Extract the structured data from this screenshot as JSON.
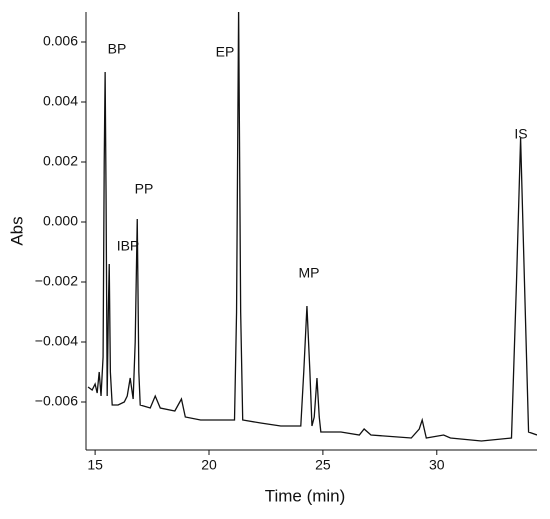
{
  "chart_data": {
    "type": "line",
    "x_label": "Time (min)",
    "y_label": "Abs",
    "annotations": [
      "BP",
      "IBP",
      "PP",
      "EP",
      "MP",
      "IS"
    ],
    "color": "#111111",
    "x": [
      14.69,
      14.87,
      15.0,
      15.09,
      15.18,
      15.26,
      15.35,
      15.4,
      15.44,
      15.48,
      15.53,
      15.58,
      15.62,
      15.67,
      15.75,
      16.01,
      16.28,
      16.41,
      16.54,
      16.67,
      16.76,
      16.85,
      16.92,
      16.98,
      17.42,
      17.64,
      17.86,
      18.5,
      18.79,
      18.96,
      19.63,
      20.51,
      21.12,
      21.21,
      21.3,
      21.39,
      21.48,
      22.27,
      23.15,
      24.03,
      24.16,
      24.3,
      24.43,
      24.52,
      24.62,
      24.74,
      24.84,
      24.91,
      25.79,
      26.6,
      26.81,
      27.11,
      28.88,
      29.23,
      29.36,
      29.54,
      30.3,
      30.6,
      31.96,
      33.28,
      33.5,
      33.68,
      33.85,
      34.03,
      34.4
    ],
    "values": [
      -0.0055,
      -0.0056,
      -0.0054,
      -0.0057,
      -0.005,
      -0.0058,
      -0.0045,
      0.002,
      0.005,
      0.001,
      -0.0058,
      -0.003,
      -0.0014,
      -0.005,
      -0.0061,
      -0.0061,
      -0.006,
      -0.0058,
      -0.0052,
      -0.0059,
      -0.004,
      0.0001,
      -0.005,
      -0.0061,
      -0.0062,
      -0.0058,
      -0.0062,
      -0.0063,
      -0.0059,
      -0.0065,
      -0.0066,
      -0.0066,
      -0.0066,
      -0.003,
      0.0071,
      -0.003,
      -0.0066,
      -0.0067,
      -0.0068,
      -0.0068,
      -0.005,
      -0.0028,
      -0.005,
      -0.0068,
      -0.0065,
      -0.0052,
      -0.0065,
      -0.007,
      -0.007,
      -0.0071,
      -0.0069,
      -0.0071,
      -0.0072,
      -0.0069,
      -0.0066,
      -0.0072,
      -0.0071,
      -0.0072,
      -0.0073,
      -0.0072,
      -0.002,
      0.0028,
      -0.002,
      -0.007,
      -0.0071
    ],
    "xlim": [
      14.6,
      34.4
    ],
    "xticks": [
      15,
      20,
      25,
      30
    ],
    "ylim": [
      -0.0076,
      0.007
    ],
    "yticks": [
      {
        "value": -0.006,
        "label": "−0.006"
      },
      {
        "value": -0.004,
        "label": "−0.004"
      },
      {
        "value": -0.002,
        "label": "−0.002"
      },
      {
        "value": 0,
        "label": "0.000"
      },
      0.002,
      0.004,
      0.006
    ],
    "grid": false
  }
}
